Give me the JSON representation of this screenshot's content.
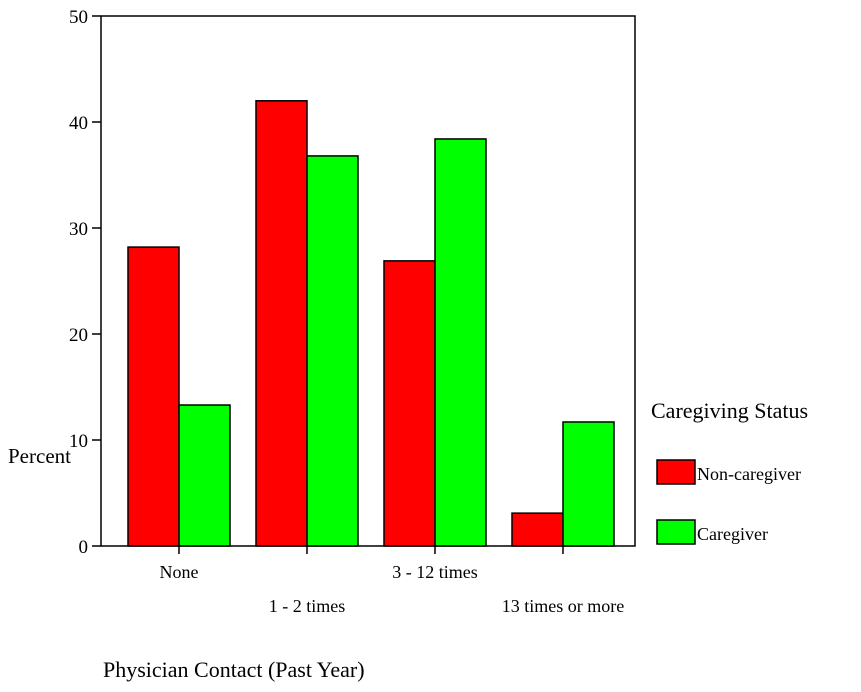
{
  "chart_data": {
    "type": "bar",
    "title": "",
    "xlabel": "Physician Contact (Past Year)",
    "ylabel": "Percent",
    "ylim": [
      0,
      50
    ],
    "yticks": [
      0,
      10,
      20,
      30,
      40,
      50
    ],
    "grid": false,
    "legend": {
      "title": "Caregiving Status",
      "position": "right"
    },
    "categories": [
      "None",
      "1 - 2 times",
      "3 - 12 times",
      "13 times or more"
    ],
    "series": [
      {
        "name": "Non-caregiver",
        "color": "#ff0000",
        "values": [
          28.2,
          42.0,
          26.9,
          3.1
        ]
      },
      {
        "name": "Caregiver",
        "color": "#00ff00",
        "values": [
          13.3,
          36.8,
          38.4,
          11.7
        ]
      }
    ]
  }
}
